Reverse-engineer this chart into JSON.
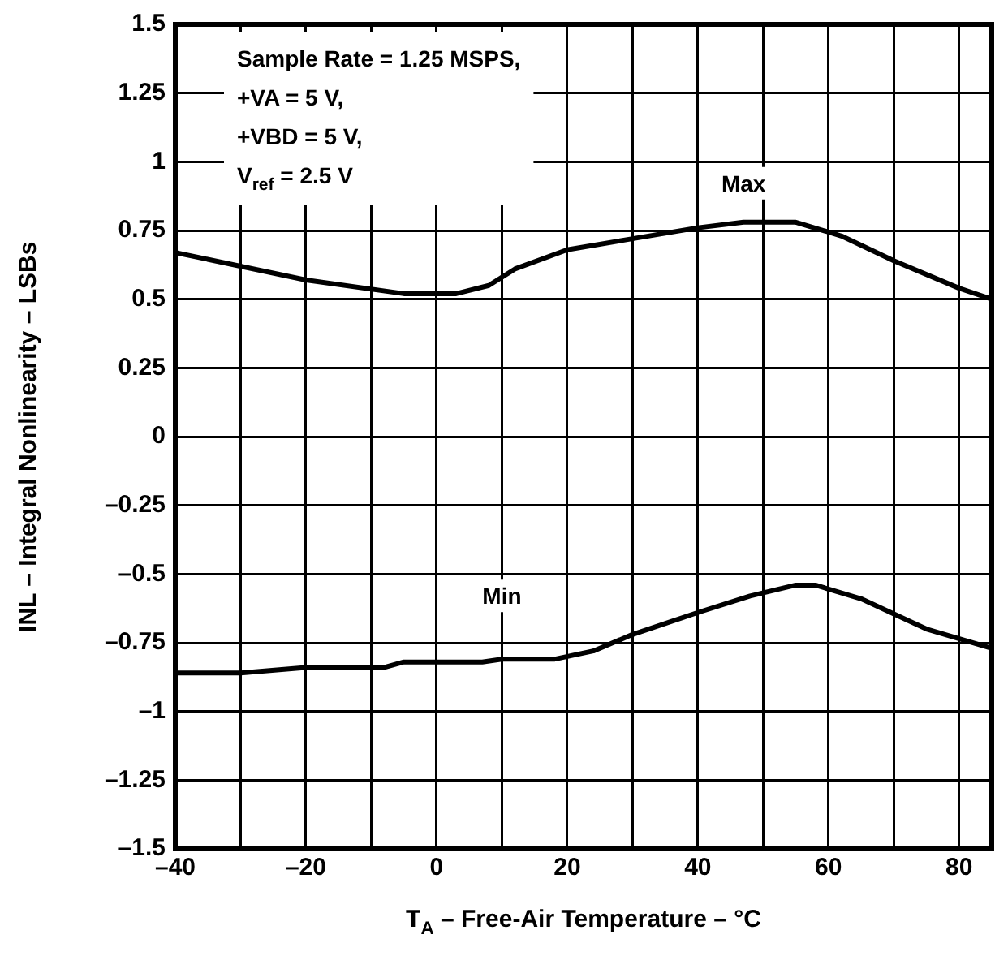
{
  "chart_data": {
    "type": "line",
    "xlabel": "T$_{A}$ – Free-Air Temperature – °C",
    "ylabel": "INL – Integral Nonlinearity – LSBs",
    "series": [
      {
        "name": "Max",
        "color": "#000000",
        "x": [
          -40,
          -20,
          -5,
          3,
          8,
          12,
          20,
          30,
          40,
          47,
          55,
          62,
          70,
          80,
          85
        ],
        "values": [
          0.67,
          0.57,
          0.52,
          0.52,
          0.55,
          0.61,
          0.68,
          0.72,
          0.76,
          0.78,
          0.78,
          0.73,
          0.64,
          0.54,
          0.5
        ]
      },
      {
        "name": "Min",
        "color": "#000000",
        "x": [
          -40,
          -30,
          -20,
          -8,
          -5,
          7,
          10,
          18,
          24,
          30,
          40,
          48,
          55,
          58,
          65,
          75,
          85
        ],
        "values": [
          -0.86,
          -0.86,
          -0.84,
          -0.84,
          -0.82,
          -0.82,
          -0.81,
          -0.81,
          -0.78,
          -0.72,
          -0.64,
          -0.58,
          -0.54,
          -0.54,
          -0.59,
          -0.7,
          -0.77
        ]
      }
    ],
    "annotations": [
      "Sample Rate = 1.25 MSPS,",
      "+VA = 5 V,",
      "+VBD = 5 V,",
      "V$_{ref}$ = 2.5 V"
    ],
    "xlim": [
      -40,
      85
    ],
    "xticks": [
      {
        "value": -40,
        "label": "–40"
      },
      {
        "value": -30,
        "label": null
      },
      {
        "value": -20,
        "label": "–20"
      },
      {
        "value": -10,
        "label": null
      },
      0,
      {
        "value": 10,
        "label": null
      },
      20,
      {
        "value": 30,
        "label": null
      },
      40,
      {
        "value": 50,
        "label": null
      },
      60,
      {
        "value": 70,
        "label": null
      },
      80
    ],
    "ylim": [
      -1.5,
      1.5
    ],
    "yticks": [
      {
        "value": -1.5,
        "label": "–1.5"
      },
      {
        "value": -1.25,
        "label": "–1.25"
      },
      {
        "value": -1,
        "label": "–1"
      },
      {
        "value": -0.75,
        "label": "–0.75"
      },
      {
        "value": -0.5,
        "label": "–0.5"
      },
      {
        "value": -0.25,
        "label": "–0.25"
      },
      0,
      0.25,
      0.5,
      0.75,
      1,
      1.25,
      1.5
    ],
    "grid": true,
    "legend": false,
    "marker": "none",
    "line_style": "solid"
  }
}
